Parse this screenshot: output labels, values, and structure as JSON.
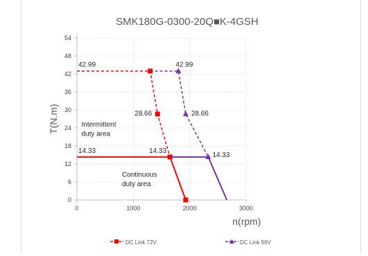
{
  "chart_data": {
    "type": "line",
    "title": "SMK180G-0300-20Q■K-4GSH",
    "xlabel": "n(rpm)",
    "ylabel": "T(N.m)",
    "xlim": [
      0,
      3000
    ],
    "ylim": [
      0,
      54
    ],
    "x_ticks": [
      0,
      1000,
      2000,
      3000
    ],
    "y_ticks": [
      0,
      6,
      12,
      18,
      24,
      30,
      36,
      42,
      48,
      54
    ],
    "grid": true,
    "legend_position": "bottom",
    "annotations": [
      {
        "text": "Intermittent",
        "x": 80,
        "y": 24.5
      },
      {
        "text": "duty area",
        "x": 80,
        "y": 21.4
      },
      {
        "text": "Continuous",
        "x": 800,
        "y": 7.7
      },
      {
        "text": "duty area",
        "x": 800,
        "y": 4.6
      }
    ],
    "series": [
      {
        "name": "DC Link 72V",
        "color": "#ff0000",
        "continuous": [
          [
            0,
            14.33
          ],
          [
            1650,
            14.33
          ],
          [
            1930,
            0
          ]
        ],
        "intermittent": [
          [
            0,
            42.99
          ],
          [
            1300,
            42.99
          ],
          [
            1430,
            28.66
          ],
          [
            1650,
            14.33
          ]
        ],
        "points": [
          {
            "x": 1300,
            "y": 42.99,
            "label": "42.99"
          },
          {
            "x": 1430,
            "y": 28.66,
            "label": "28.66"
          },
          {
            "x": 1650,
            "y": 14.33,
            "label": "14.33"
          },
          {
            "x": 1930,
            "y": 0,
            "label": ""
          }
        ],
        "axis_label": "42.99",
        "axis_label_cont": "14.33"
      },
      {
        "name": "DC Link 96V",
        "color": "#7030a0",
        "continuous": [
          [
            1650,
            14.33
          ],
          [
            2330,
            14.33
          ],
          [
            2660,
            0
          ]
        ],
        "intermittent": [
          [
            1300,
            42.99
          ],
          [
            1800,
            42.99
          ],
          [
            1930,
            28.66
          ],
          [
            2330,
            14.33
          ]
        ],
        "points": [
          {
            "x": 1800,
            "y": 42.99,
            "label": "42.99"
          },
          {
            "x": 1930,
            "y": 28.66,
            "label": "28.66"
          },
          {
            "x": 2330,
            "y": 14.33,
            "label": "14.33"
          }
        ]
      }
    ]
  }
}
